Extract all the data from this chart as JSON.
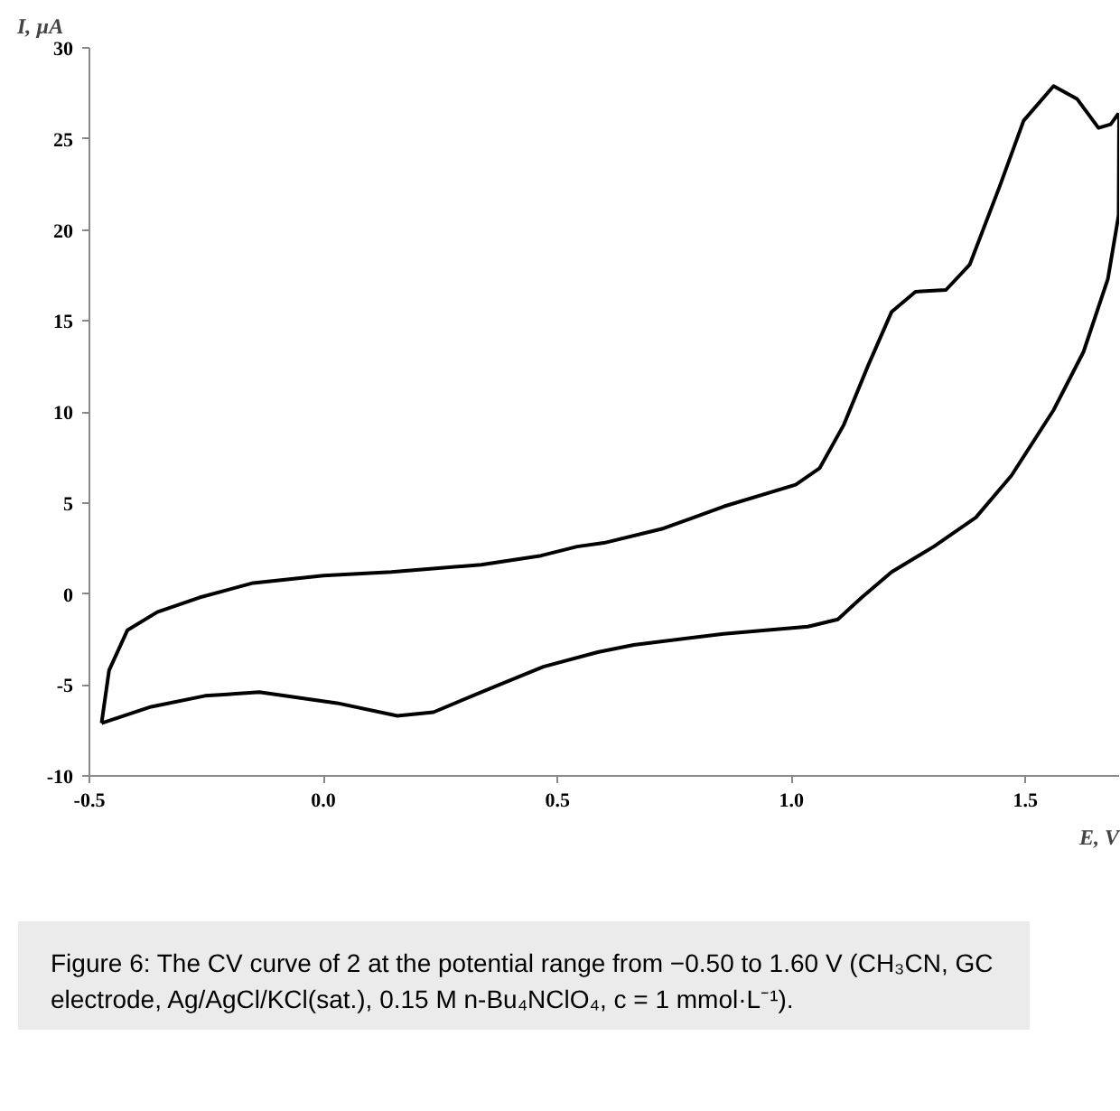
{
  "chart_data": {
    "type": "line",
    "xlabel": "E, V",
    "ylabel": "I, µA",
    "xlim": [
      -0.5,
      1.7
    ],
    "xticks": [
      {
        "value": -0.5,
        "label": "-0.5"
      },
      {
        "value": 0,
        "label": "0.0"
      },
      {
        "value": 0.5,
        "label": "0.5"
      },
      {
        "value": 1.0,
        "label": "1.0"
      },
      {
        "value": 1.5,
        "label": "1.5"
      }
    ],
    "ylim": [
      -10,
      30
    ],
    "yticks": [
      -10,
      -5,
      0,
      5,
      10,
      15,
      20,
      25,
      30
    ],
    "grid": false,
    "marker": "none",
    "line_style": "solid",
    "series": [
      {
        "color": "#000000",
        "x": [
          -0.474,
          -0.458,
          -0.419,
          -0.355,
          -0.265,
          -0.15,
          0.0,
          0.145,
          0.337,
          0.465,
          0.542,
          0.599,
          0.727,
          0.855,
          1.009,
          1.06,
          1.112,
          1.163,
          1.214,
          1.265,
          1.33,
          1.381,
          1.445,
          1.496,
          1.56,
          1.61,
          1.656,
          1.682,
          1.699
        ],
        "values": [
          -7.1,
          -4.2,
          -2.0,
          -1.0,
          -0.2,
          0.6,
          1.0,
          1.2,
          1.6,
          2.1,
          2.6,
          2.8,
          3.6,
          4.8,
          6.0,
          6.9,
          9.3,
          12.5,
          15.5,
          16.6,
          16.7,
          18.1,
          22.4,
          26.0,
          27.9,
          27.2,
          25.6,
          25.8,
          26.4
        ]
      },
      {
        "color": "#000000",
        "x": [
          1.7,
          1.699,
          1.676,
          1.624,
          1.56,
          1.47,
          1.394,
          1.304,
          1.214,
          1.15,
          1.099,
          1.035,
          0.855,
          0.663,
          0.586,
          0.47,
          0.337,
          0.235,
          0.158,
          0.029,
          -0.137,
          -0.253,
          -0.368,
          -0.474
        ],
        "values": [
          26.4,
          20.8,
          17.3,
          13.3,
          10.1,
          6.5,
          4.2,
          2.6,
          1.2,
          -0.2,
          -1.4,
          -1.8,
          -2.2,
          -2.8,
          -3.2,
          -4.0,
          -5.4,
          -6.5,
          -6.7,
          -6.0,
          -5.4,
          -5.6,
          -6.2,
          -7.1
        ]
      }
    ],
    "annotations": [
      "Figure 6: The CV curve of 2 at the potential range from −0.50 to 1.60 V (CH₃CN, GC electrode, Ag/AgCl/KCl(sat.), 0.15 M n-Bu₄NClO₄, c = 1 mmol·L⁻¹)."
    ]
  }
}
